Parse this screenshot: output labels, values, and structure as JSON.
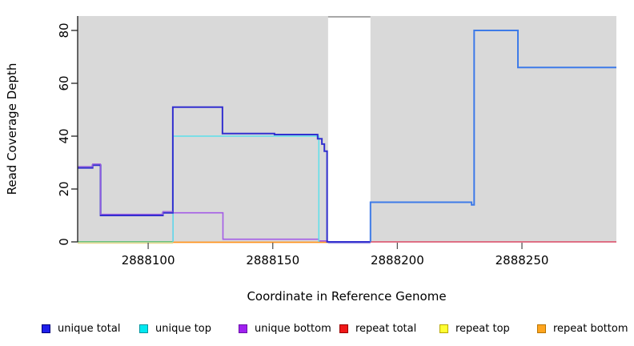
{
  "axes": {
    "x": {
      "label": "Coordinate in Reference Genome",
      "min": 2888071.7,
      "max": 2888287.9,
      "ticks": [
        {
          "value": 2888100,
          "label": "2888100"
        },
        {
          "value": 2888150,
          "label": "2888150"
        },
        {
          "value": 2888200,
          "label": "2888200"
        },
        {
          "value": 2888250,
          "label": "2888250"
        }
      ]
    },
    "y": {
      "label": "Read Coverage Depth",
      "min": 0,
      "max": 85.5,
      "ticks": [
        {
          "value": 0,
          "label": "0"
        },
        {
          "value": 20,
          "label": "20"
        },
        {
          "value": 40,
          "label": "40"
        },
        {
          "value": 60,
          "label": "60"
        },
        {
          "value": 80,
          "label": "80"
        }
      ]
    }
  },
  "colors": {
    "plot_background": "#d9d9d9",
    "masked_region_background": "#ffffff",
    "masked_region_top_line": "#8c8c8c",
    "axis_line": "#1a1a1a",
    "x_tick": "#555555",
    "y_tick": "#222222"
  },
  "masked_region": {
    "from": 2888172.2,
    "to": 2888189.2
  },
  "chart_data": {
    "type": "line",
    "title": "",
    "xlabel": "Coordinate in Reference Genome",
    "ylabel": "Read Coverage Depth",
    "xlim": [
      2888072,
      2888288
    ],
    "ylim": [
      0,
      85
    ],
    "grid": false,
    "legend_position": "bottom",
    "note": "step coverage plot; white band 2888172-2888189 is a masked/no-data region; step_points = [coordinate, depth holds until next coordinate]",
    "series": [
      {
        "name": "unique total",
        "color": "#0000ff",
        "step_points": [
          [
            2888072,
            28
          ],
          [
            2888078,
            29
          ],
          [
            2888081,
            10
          ],
          [
            2888106,
            11
          ],
          [
            2888110,
            51
          ],
          [
            2888130,
            41
          ],
          [
            2888151,
            40
          ],
          [
            2888168,
            39
          ],
          [
            2888171,
            37
          ],
          [
            2888172,
            34
          ],
          [
            2888172,
            0
          ],
          [
            2888189,
            15
          ],
          [
            2888230,
            14
          ],
          [
            2888231,
            80
          ],
          [
            2888248,
            66
          ],
          [
            2888288,
            66
          ]
        ]
      },
      {
        "name": "unique top",
        "color": "#00ffff",
        "step_points": [
          [
            2888072,
            0
          ],
          [
            2888110,
            40
          ],
          [
            2888169,
            0
          ],
          [
            2888189,
            15
          ],
          [
            2888230,
            14
          ],
          [
            2888231,
            80
          ],
          [
            2888248,
            66
          ],
          [
            2888288,
            66
          ]
        ]
      },
      {
        "name": "unique bottom",
        "color": "#a020f0",
        "step_points": [
          [
            2888072,
            28
          ],
          [
            2888078,
            29
          ],
          [
            2888081,
            10
          ],
          [
            2888106,
            11
          ],
          [
            2888110,
            11
          ],
          [
            2888130,
            1
          ],
          [
            2888169,
            0
          ],
          [
            2888288,
            0
          ]
        ]
      },
      {
        "name": "repeat total",
        "color": "#ff0000",
        "step_points": [
          [
            2888072,
            0
          ],
          [
            2888288,
            0
          ]
        ]
      },
      {
        "name": "repeat top",
        "color": "#ffff00",
        "step_points": [
          [
            2888072,
            0
          ],
          [
            2888288,
            0
          ]
        ]
      },
      {
        "name": "repeat bottom",
        "color": "#ffa500",
        "step_points": [
          [
            2888072,
            0
          ],
          [
            2888288,
            0
          ]
        ]
      }
    ],
    "render_series": [
      {
        "name": "repeat-top-baseline",
        "color": "#e6d78a",
        "width": 1.5,
        "points": [
          [
            2888071.7,
            -0.45
          ],
          [
            2888110,
            -0.45
          ]
        ]
      },
      {
        "name": "unique-top-over-repeat-top-baseline",
        "color": "#68c17d",
        "width": 1.5,
        "points": [
          [
            2888071.7,
            0.05
          ],
          [
            2888110,
            0.05
          ]
        ]
      },
      {
        "name": "gap-baseline-lavender",
        "color": "#a9a4e8",
        "width": 1.4,
        "points": [
          [
            2888172.2,
            -0.5
          ],
          [
            2888189.2,
            -0.5
          ]
        ]
      },
      {
        "name": "repeat-total-baseline",
        "color": "#dc4864",
        "width": 1.5,
        "points": [
          [
            2888189.2,
            0
          ],
          [
            2888287.9,
            0
          ]
        ]
      },
      {
        "name": "repeat-bottom-baseline",
        "color": "#ff9420",
        "width": 1.8,
        "points": [
          [
            2888110,
            -0.15
          ],
          [
            2888172.2,
            -0.15
          ]
        ]
      },
      {
        "name": "unique-bottom",
        "color": "#a45ce6",
        "width": 1.6,
        "points": [
          [
            2888110,
            0
          ],
          [
            2888110,
            11
          ],
          [
            2888130,
            11
          ],
          [
            2888130,
            1
          ],
          [
            2888168.5,
            1
          ],
          [
            2888168.5,
            0.35
          ],
          [
            2888172.2,
            0.35
          ]
        ]
      },
      {
        "name": "unique-top",
        "color": "#5ce0ea",
        "width": 1.5,
        "points": [
          [
            2888110,
            0
          ],
          [
            2888110,
            40
          ],
          [
            2888168.5,
            40
          ],
          [
            2888168.5,
            0
          ]
        ]
      },
      {
        "name": "unique-total-left",
        "color": "#3330cf",
        "width": 2,
        "points": [
          [
            2888071.7,
            28
          ],
          [
            2888077.7,
            28
          ],
          [
            2888077.7,
            29
          ],
          [
            2888080.9,
            29
          ],
          [
            2888080.9,
            10
          ],
          [
            2888105.9,
            10
          ],
          [
            2888105.9,
            11
          ],
          [
            2888109.9,
            11
          ],
          [
            2888109.9,
            51
          ],
          [
            2888129.8,
            51
          ],
          [
            2888129.8,
            41
          ],
          [
            2888150.7,
            41
          ],
          [
            2888150.7,
            40.6
          ],
          [
            2888168,
            40.6
          ],
          [
            2888168,
            39
          ],
          [
            2888169.7,
            39
          ],
          [
            2888169.7,
            37
          ],
          [
            2888170.7,
            37
          ],
          [
            2888170.7,
            34.3
          ],
          [
            2888171.8,
            34.3
          ],
          [
            2888171.8,
            0
          ],
          [
            2888189.2,
            0
          ]
        ]
      },
      {
        "name": "unique-bottom-left-fringe",
        "color": "#9a5be0",
        "width": 1.1,
        "points": [
          [
            2888071.7,
            28.5
          ],
          [
            2888077.7,
            28.5
          ],
          [
            2888077.7,
            29.5
          ],
          [
            2888080.9,
            29.5
          ],
          [
            2888080.9,
            10.5
          ],
          [
            2888105.9,
            10.5
          ],
          [
            2888105.9,
            11.5
          ],
          [
            2888109.9,
            11.5
          ]
        ]
      },
      {
        "name": "unique-total-right",
        "color": "#3e7be8",
        "width": 2,
        "points": [
          [
            2888189.2,
            0
          ],
          [
            2888189.2,
            15
          ],
          [
            2888229.8,
            15
          ],
          [
            2888229.8,
            14
          ],
          [
            2888230.8,
            14
          ],
          [
            2888230.8,
            80
          ],
          [
            2888248.4,
            80
          ],
          [
            2888248.4,
            66
          ],
          [
            2888287.9,
            66
          ]
        ]
      }
    ]
  },
  "legend": {
    "items": [
      {
        "label": "unique total",
        "color": "#1f1feb",
        "border": "#00007a"
      },
      {
        "label": "unique top",
        "color": "#00e8f0",
        "border": "#0096a0"
      },
      {
        "label": "unique bottom",
        "color": "#a020f0",
        "border": "#6a11a8"
      },
      {
        "label": "repeat total",
        "color": "#f01818",
        "border": "#990000"
      },
      {
        "label": "repeat top",
        "color": "#ffff33",
        "border": "#b8a800"
      },
      {
        "label": "repeat bottom",
        "color": "#ffa51f",
        "border": "#b87400"
      }
    ]
  }
}
